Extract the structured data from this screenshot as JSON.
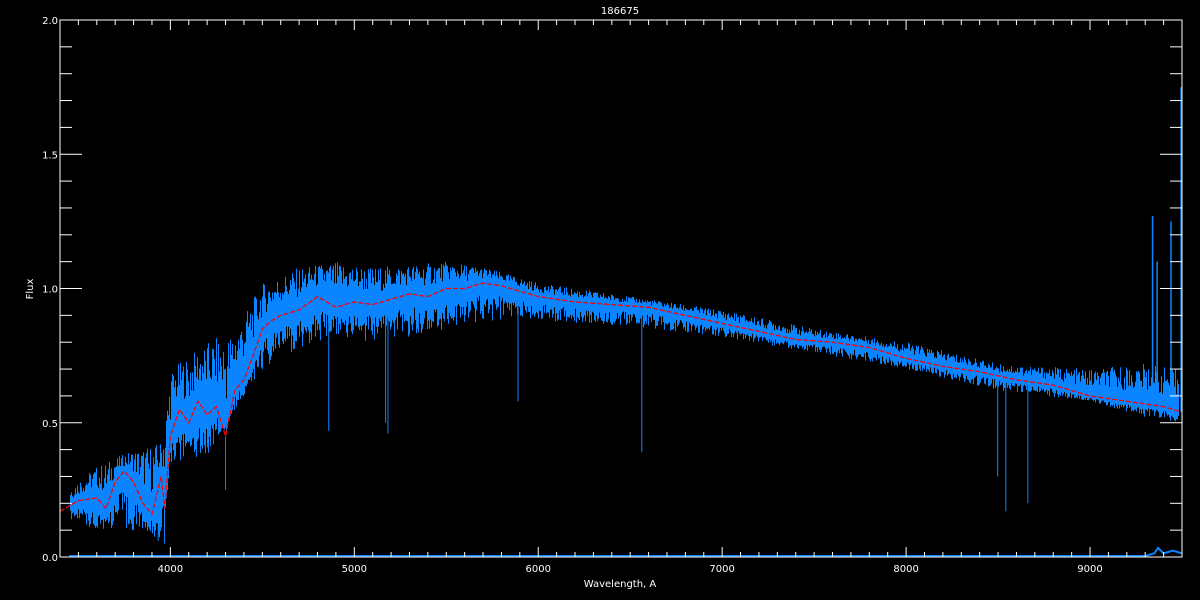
{
  "chart_data": {
    "type": "line",
    "title": "186675",
    "xlabel": "Wavelength, A",
    "ylabel": "Flux",
    "xlim": [
      3400,
      9500
    ],
    "ylim": [
      0.0,
      2.0
    ],
    "x_major_ticks": [
      4000,
      5000,
      6000,
      7000,
      8000,
      9000
    ],
    "x_tick_labels": [
      "4000",
      "5000",
      "6000",
      "7000",
      "8000",
      "9000"
    ],
    "x_minor_step": 100,
    "y_major_ticks": [
      0.0,
      0.5,
      1.0,
      1.5,
      2.0
    ],
    "y_tick_labels": [
      "0.0",
      "0.5",
      "1.0",
      "1.5",
      "2.0"
    ],
    "y_minor_step": 0.1,
    "grid": false,
    "colors": {
      "background": "#000000",
      "axes": "#ffffff",
      "spectrum": "#0a84ff",
      "smoothed": "#ff0000",
      "error": "#0a84ff"
    },
    "series": [
      {
        "role": "smoothed",
        "color": "#ff0000",
        "style": "dashed",
        "x": [
          3400,
          3500,
          3600,
          3650,
          3700,
          3750,
          3800,
          3850,
          3900,
          3950,
          3970,
          4000,
          4050,
          4100,
          4150,
          4200,
          4250,
          4300,
          4350,
          4400,
          4450,
          4500,
          4550,
          4600,
          4700,
          4800,
          4900,
          5000,
          5100,
          5200,
          5300,
          5400,
          5500,
          5600,
          5700,
          5800,
          5900,
          6000,
          6200,
          6400,
          6600,
          6800,
          7000,
          7200,
          7400,
          7600,
          7800,
          8000,
          8200,
          8400,
          8600,
          8800,
          9000,
          9200,
          9400,
          9500
        ],
        "y": [
          0.17,
          0.21,
          0.22,
          0.18,
          0.28,
          0.32,
          0.28,
          0.2,
          0.16,
          0.3,
          0.18,
          0.45,
          0.55,
          0.5,
          0.58,
          0.53,
          0.56,
          0.45,
          0.62,
          0.66,
          0.75,
          0.85,
          0.88,
          0.9,
          0.92,
          0.97,
          0.93,
          0.95,
          0.94,
          0.96,
          0.98,
          0.97,
          1.0,
          1.0,
          1.02,
          1.01,
          0.99,
          0.97,
          0.95,
          0.94,
          0.93,
          0.9,
          0.87,
          0.84,
          0.81,
          0.8,
          0.78,
          0.74,
          0.71,
          0.69,
          0.66,
          0.64,
          0.6,
          0.58,
          0.56,
          0.54
        ]
      },
      {
        "role": "spectrum",
        "color": "#0a84ff",
        "x": [
          3450,
          3600,
          3800,
          3950,
          4000,
          4200,
          4350,
          4500,
          4700,
          4900,
          5100,
          5300,
          5500,
          5700,
          6000,
          6500,
          7000,
          7500,
          8000,
          8500,
          9000,
          9300,
          9480
        ],
        "upper": [
          0.26,
          0.34,
          0.4,
          0.43,
          0.7,
          0.8,
          0.85,
          1.02,
          1.08,
          1.1,
          1.08,
          1.09,
          1.1,
          1.08,
          1.02,
          0.97,
          0.92,
          0.85,
          0.8,
          0.72,
          0.7,
          0.72,
          0.7
        ],
        "lower": [
          0.14,
          0.1,
          0.1,
          0.06,
          0.35,
          0.38,
          0.55,
          0.7,
          0.78,
          0.82,
          0.8,
          0.82,
          0.85,
          0.88,
          0.88,
          0.86,
          0.82,
          0.76,
          0.7,
          0.62,
          0.58,
          0.52,
          0.5
        ]
      },
      {
        "role": "error",
        "color": "#0a84ff",
        "x": [
          3450,
          9300,
          9350,
          9370,
          9400,
          9450,
          9500
        ],
        "y": [
          0.0,
          0.0,
          0.01,
          0.03,
          0.01,
          0.02,
          0.01
        ]
      }
    ],
    "absorption_lines": [
      {
        "x": 3934,
        "y": 0.06
      },
      {
        "x": 3968,
        "y": 0.05
      },
      {
        "x": 4300,
        "y": 0.25
      },
      {
        "x": 4861,
        "y": 0.47
      },
      {
        "x": 5170,
        "y": 0.5
      },
      {
        "x": 5183,
        "y": 0.46
      },
      {
        "x": 5890,
        "y": 0.58
      },
      {
        "x": 6563,
        "y": 0.39
      },
      {
        "x": 8498,
        "y": 0.3
      },
      {
        "x": 8542,
        "y": 0.17
      },
      {
        "x": 8662,
        "y": 0.2
      }
    ],
    "emission_spikes": [
      {
        "x": 9340,
        "y": 1.27
      },
      {
        "x": 9365,
        "y": 1.1
      },
      {
        "x": 9440,
        "y": 1.25
      },
      {
        "x": 9495,
        "y": 1.75
      }
    ]
  }
}
